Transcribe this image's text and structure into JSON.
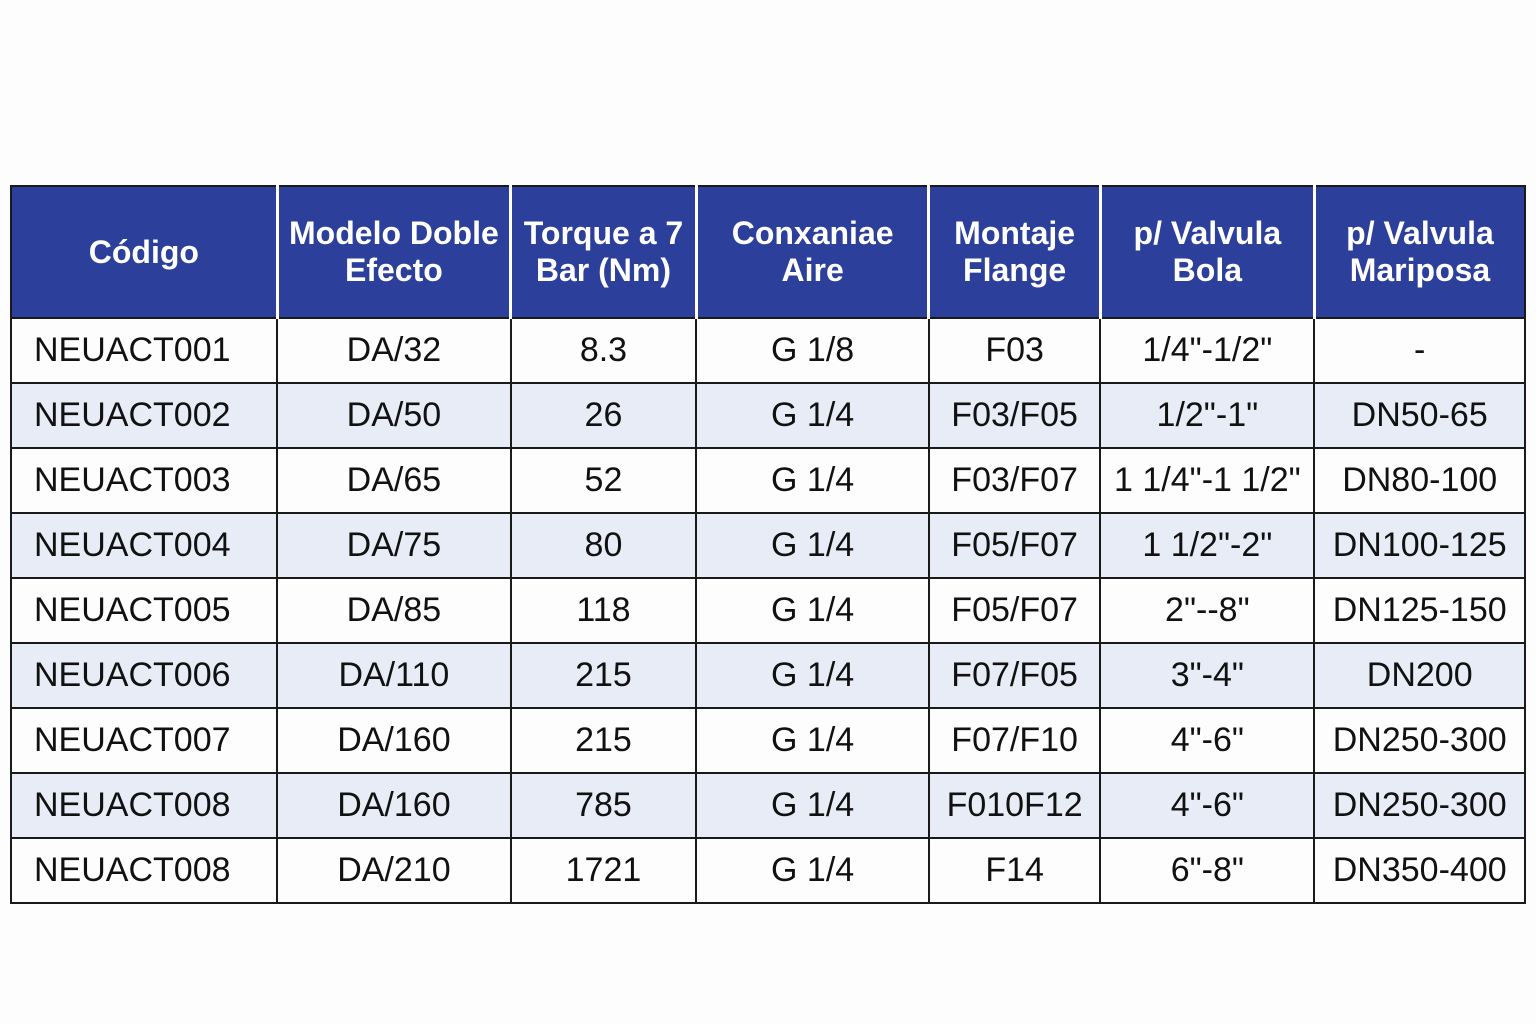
{
  "colors": {
    "header_bg": "#2b3f9b",
    "alt_row_bg": "#e8ecf6"
  },
  "headers": [
    "Código",
    "Modelo Doble Efecto",
    "Torque a 7 Bar (Nm)",
    "Conxaniae Aire",
    "Montaje Flange",
    "p/ Valvula Bola",
    "p/ Valvula Mariposa"
  ],
  "rows": [
    [
      "NEUACT001",
      "DA/32",
      "8.3",
      "G 1/8",
      "F03",
      "1/4\"-1/2\"",
      "-"
    ],
    [
      "NEUACT002",
      "DA/50",
      "26",
      "G 1/4",
      "F03/F05",
      "1/2\"-1\"",
      "DN50-65"
    ],
    [
      "NEUACT003",
      "DA/65",
      "52",
      "G 1/4",
      "F03/F07",
      "1 1/4\"-1 1/2\"",
      "DN80-100"
    ],
    [
      "NEUACT004",
      "DA/75",
      "80",
      "G 1/4",
      "F05/F07",
      "1 1/2\"-2\"",
      "DN100-125"
    ],
    [
      "NEUACT005",
      "DA/85",
      "118",
      "G 1/4",
      "F05/F07",
      "2\"--8\"",
      "DN125-150"
    ],
    [
      "NEUACT006",
      "DA/110",
      "215",
      "G 1/4",
      "F07/F05",
      "3\"-4\"",
      "DN200"
    ],
    [
      "NEUACT007",
      "DA/160",
      "215",
      "G 1/4",
      "F07/F10",
      "4\"-6\"",
      "DN250-300"
    ],
    [
      "NEUACT008",
      "DA/160",
      "785",
      "G 1/4",
      "F010F12",
      "4\"-6\"",
      "DN250-300"
    ],
    [
      "NEUACT008",
      "DA/210",
      "1721",
      "G 1/4",
      "F14",
      "6\"-8\"",
      "DN350-400"
    ]
  ]
}
